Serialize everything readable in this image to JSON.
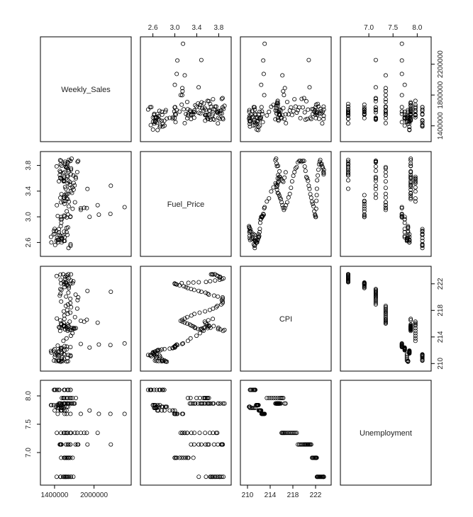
{
  "chart_data": {
    "type": "scatter",
    "variables": [
      "Weekly_Sales",
      "Fuel_Price",
      "CPI",
      "Unemployment"
    ],
    "axes": {
      "Weekly_Sales": {
        "lim": [
          1250000,
          2500000
        ],
        "ticks": [
          1400000,
          1800000,
          2200000
        ],
        "tick_labels_bottom": [
          "1400000",
          "2000000"
        ],
        "ticks_bottom": [
          1400000,
          2000000
        ]
      },
      "Fuel_Price": {
        "lim": [
          2.45,
          3.95
        ],
        "ticks": [
          2.6,
          3.0,
          3.4,
          3.8
        ],
        "tick_labels": [
          "2.6",
          "3.0",
          "3.4",
          "3.8"
        ]
      },
      "CPI": {
        "lim": [
          209.5,
          224.0
        ],
        "ticks": [
          210,
          214,
          218,
          222
        ],
        "tick_labels": [
          "210",
          "214",
          "218",
          "222"
        ]
      },
      "Unemployment": {
        "lim": [
          6.5,
          8.2
        ],
        "ticks": [
          7.0,
          7.5,
          8.0
        ],
        "tick_labels": [
          "7.0",
          "7.5",
          "8.0"
        ]
      }
    },
    "tick_labels_y_right": [
      "1400000",
      "1800000",
      "2200000"
    ],
    "tick_labels_y_left_row2": [
      "2.6",
      "3.0",
      "3.4",
      "3.8"
    ],
    "tick_labels_y_right_row3": [
      "210",
      "214",
      "218",
      "222"
    ],
    "tick_labels_y_left_row4": [
      "7.0",
      "7.5",
      "8.0"
    ],
    "tick_labels_top_col2": [
      "2.6",
      "3.0",
      "3.4",
      "3.8"
    ],
    "tick_labels_top_col4": [
      "7.0",
      "7.5",
      "8.0"
    ],
    "tick_labels_bottom_col1": [
      "1400000",
      "2000000"
    ],
    "tick_labels_bottom_col3": [
      "210",
      "214",
      "218",
      "222"
    ],
    "points": [
      [
        1643691,
        2.572,
        211.1,
        8.106
      ],
      [
        1641957,
        2.548,
        211.24,
        8.106
      ],
      [
        1611968,
        2.514,
        211.29,
        8.106
      ],
      [
        1409728,
        2.561,
        211.32,
        8.106
      ],
      [
        1554807,
        2.625,
        211.35,
        8.106
      ],
      [
        1439542,
        2.667,
        211.38,
        8.106
      ],
      [
        1472516,
        2.72,
        211.22,
        8.106
      ],
      [
        1404430,
        2.732,
        211.02,
        8.106
      ],
      [
        1594968,
        2.719,
        210.82,
        8.106
      ],
      [
        1545419,
        2.77,
        210.62,
        8.106
      ],
      [
        1466058,
        2.808,
        210.49,
        8.106
      ],
      [
        1391256,
        2.782,
        210.44,
        8.106
      ],
      [
        1425101,
        2.78,
        210.39,
        7.808
      ],
      [
        1603955,
        2.835,
        210.34,
        7.808
      ],
      [
        1494252,
        2.854,
        210.28,
        7.808
      ],
      [
        1582084,
        2.826,
        210.31,
        7.808
      ],
      [
        1466046,
        2.759,
        210.34,
        7.808
      ],
      [
        1527015,
        2.705,
        210.37,
        7.808
      ],
      [
        1507460,
        2.668,
        210.4,
        7.808
      ],
      [
        1453330,
        2.637,
        210.46,
        7.787
      ],
      [
        1508237,
        2.653,
        210.71,
        7.787
      ],
      [
        1513080,
        2.669,
        210.95,
        7.787
      ],
      [
        1449142,
        2.642,
        211.19,
        7.787
      ],
      [
        1540163,
        2.623,
        211.43,
        7.787
      ],
      [
        1507461,
        2.601,
        211.52,
        7.838
      ],
      [
        1430379,
        2.629,
        211.58,
        7.838
      ],
      [
        1351791,
        2.601,
        211.64,
        7.838
      ],
      [
        1453329,
        2.603,
        211.7,
        7.838
      ],
      [
        1508239,
        2.633,
        211.76,
        7.838
      ],
      [
        1459409,
        2.643,
        211.82,
        7.838
      ],
      [
        1345454,
        2.687,
        211.89,
        7.838
      ],
      [
        1384210,
        2.727,
        211.95,
        7.838
      ],
      [
        1551660,
        2.681,
        212.0,
        7.742
      ],
      [
        1494122,
        2.7,
        212.06,
        7.742
      ],
      [
        1582083,
        2.761,
        212.12,
        7.742
      ],
      [
        1402234,
        2.812,
        212.18,
        7.742
      ],
      [
        1502563,
        2.907,
        212.24,
        7.742
      ],
      [
        1494121,
        2.961,
        212.31,
        7.742
      ],
      [
        1511068,
        2.964,
        212.37,
        7.742
      ],
      [
        1932100,
        2.999,
        212.41,
        7.742
      ],
      [
        1642650,
        3.005,
        212.47,
        7.682
      ],
      [
        1586433,
        2.99,
        212.55,
        7.682
      ],
      [
        1554400,
        3.006,
        212.63,
        7.682
      ],
      [
        1448430,
        3.012,
        212.7,
        7.682
      ],
      [
        2248400,
        3.046,
        212.78,
        7.682
      ],
      [
        2073270,
        3.034,
        212.86,
        7.682
      ],
      [
        1798250,
        3.134,
        212.95,
        7.682
      ],
      [
        2464890,
        3.15,
        213.03,
        7.682
      ],
      [
        1534960,
        3.239,
        213.41,
        7.962
      ],
      [
        1581880,
        3.287,
        213.79,
        7.962
      ],
      [
        1648010,
        3.395,
        214.18,
        7.962
      ],
      [
        1672000,
        3.458,
        214.56,
        7.962
      ],
      [
        1599000,
        3.523,
        214.94,
        7.962
      ],
      [
        1723900,
        3.598,
        215.32,
        7.962
      ],
      [
        1547010,
        3.622,
        215.7,
        7.962
      ],
      [
        1510880,
        3.587,
        215.91,
        7.962
      ],
      [
        1541010,
        3.56,
        216.1,
        7.962
      ],
      [
        1630510,
        3.545,
        216.31,
        7.962
      ],
      [
        1488000,
        3.61,
        216.52,
        7.866
      ],
      [
        1550000,
        3.693,
        216.72,
        7.866
      ],
      [
        1480000,
        3.651,
        215.4,
        7.866
      ],
      [
        1595000,
        3.79,
        215.19,
        7.866
      ],
      [
        1660000,
        3.906,
        215.05,
        7.866
      ],
      [
        1485000,
        3.88,
        214.91,
        7.866
      ],
      [
        1560000,
        3.829,
        215.14,
        7.866
      ],
      [
        1505000,
        3.795,
        215.39,
        7.866
      ],
      [
        1615000,
        3.708,
        215.64,
        7.866
      ],
      [
        1600000,
        3.625,
        215.61,
        7.866
      ],
      [
        1540000,
        3.595,
        215.58,
        7.866
      ],
      [
        1467000,
        3.553,
        215.48,
        7.866
      ],
      [
        1690000,
        3.528,
        215.36,
        7.866
      ],
      [
        1705000,
        3.489,
        215.26,
        7.866
      ],
      [
        1560000,
        3.465,
        215.16,
        7.866
      ],
      [
        1630000,
        3.5,
        215.08,
        7.866
      ],
      [
        1690000,
        3.423,
        215.2,
        7.866
      ],
      [
        1665000,
        3.372,
        215.33,
        7.866
      ],
      [
        1579000,
        3.363,
        215.46,
        7.866
      ],
      [
        1551000,
        3.332,
        215.6,
        7.866
      ],
      [
        1540000,
        3.297,
        215.73,
        7.866
      ],
      [
        1600000,
        3.274,
        215.87,
        7.866
      ],
      [
        1498000,
        3.226,
        216.01,
        7.348
      ],
      [
        2055000,
        3.181,
        216.15,
        7.348
      ],
      [
        1850000,
        3.14,
        216.29,
        7.348
      ],
      [
        1800000,
        3.107,
        216.43,
        7.348
      ],
      [
        1890000,
        3.136,
        216.59,
        7.348
      ],
      [
        1435000,
        3.18,
        216.78,
        7.348
      ],
      [
        1710000,
        3.226,
        217.0,
        7.348
      ],
      [
        1549000,
        3.302,
        217.23,
        7.348
      ],
      [
        1600000,
        3.357,
        217.46,
        7.348
      ],
      [
        1640000,
        3.452,
        217.66,
        7.348
      ],
      [
        1540000,
        3.552,
        217.86,
        7.348
      ],
      [
        1592000,
        3.639,
        218.07,
        7.348
      ],
      [
        1745000,
        3.696,
        218.27,
        7.348
      ],
      [
        1651000,
        3.755,
        218.48,
        7.348
      ],
      [
        1571000,
        3.774,
        218.68,
        7.348
      ],
      [
        1603000,
        3.847,
        218.89,
        7.143
      ],
      [
        1640000,
        3.871,
        219.11,
        7.143
      ],
      [
        1500000,
        3.872,
        219.33,
        7.143
      ],
      [
        1750000,
        3.856,
        219.55,
        7.143
      ],
      [
        1640000,
        3.872,
        219.75,
        7.143
      ],
      [
        1760000,
        3.871,
        219.96,
        7.143
      ],
      [
        1575000,
        3.784,
        220.09,
        7.143
      ],
      [
        1480000,
        3.716,
        220.23,
        7.143
      ],
      [
        1720000,
        3.62,
        220.37,
        7.143
      ],
      [
        1490000,
        3.599,
        220.52,
        7.143
      ],
      [
        1610000,
        3.561,
        220.66,
        7.143
      ],
      [
        2255000,
        3.483,
        220.8,
        7.143
      ],
      [
        1900000,
        3.434,
        220.94,
        7.143
      ],
      [
        1505000,
        3.353,
        221.08,
        7.143
      ],
      [
        1488000,
        3.296,
        221.22,
        7.143
      ],
      [
        1617000,
        3.236,
        221.37,
        6.908
      ],
      [
        1553000,
        3.203,
        221.51,
        6.908
      ],
      [
        1615000,
        3.162,
        221.64,
        6.908
      ],
      [
        1585000,
        3.086,
        221.77,
        6.908
      ],
      [
        1604000,
        3.035,
        221.9,
        6.908
      ],
      [
        1545000,
        3.019,
        221.95,
        6.908
      ],
      [
        1640000,
        2.998,
        222.0,
        6.908
      ],
      [
        1500000,
        2.997,
        222.05,
        6.908
      ],
      [
        1675000,
        3.125,
        222.1,
        6.908
      ],
      [
        1560000,
        3.248,
        222.15,
        6.908
      ],
      [
        1580000,
        3.338,
        222.2,
        6.908
      ],
      [
        1570000,
        3.437,
        222.24,
        6.573
      ],
      [
        1542000,
        3.568,
        222.28,
        6.573
      ],
      [
        1685000,
        3.643,
        222.39,
        6.573
      ],
      [
        1650000,
        3.734,
        222.5,
        6.573
      ],
      [
        1492000,
        3.818,
        222.61,
        6.573
      ],
      [
        1560000,
        3.857,
        222.72,
        6.573
      ],
      [
        1618000,
        3.887,
        222.83,
        6.573
      ],
      [
        1590000,
        3.817,
        222.94,
        6.573
      ],
      [
        1560000,
        3.825,
        223.06,
        6.573
      ],
      [
        1432000,
        3.786,
        223.17,
        6.573
      ],
      [
        1585000,
        3.762,
        223.28,
        6.573
      ],
      [
        1490000,
        3.697,
        223.4,
        6.573
      ],
      [
        1530000,
        3.681,
        223.44,
        6.573
      ],
      [
        1610000,
        3.73,
        223.46,
        6.573
      ],
      [
        1650000,
        3.66,
        223.42,
        6.573
      ]
    ]
  },
  "labels": {
    "Weekly_Sales": "Weekly_Sales",
    "Fuel_Price": "Fuel_Price",
    "CPI": "CPI",
    "Unemployment": "Unemployment"
  }
}
